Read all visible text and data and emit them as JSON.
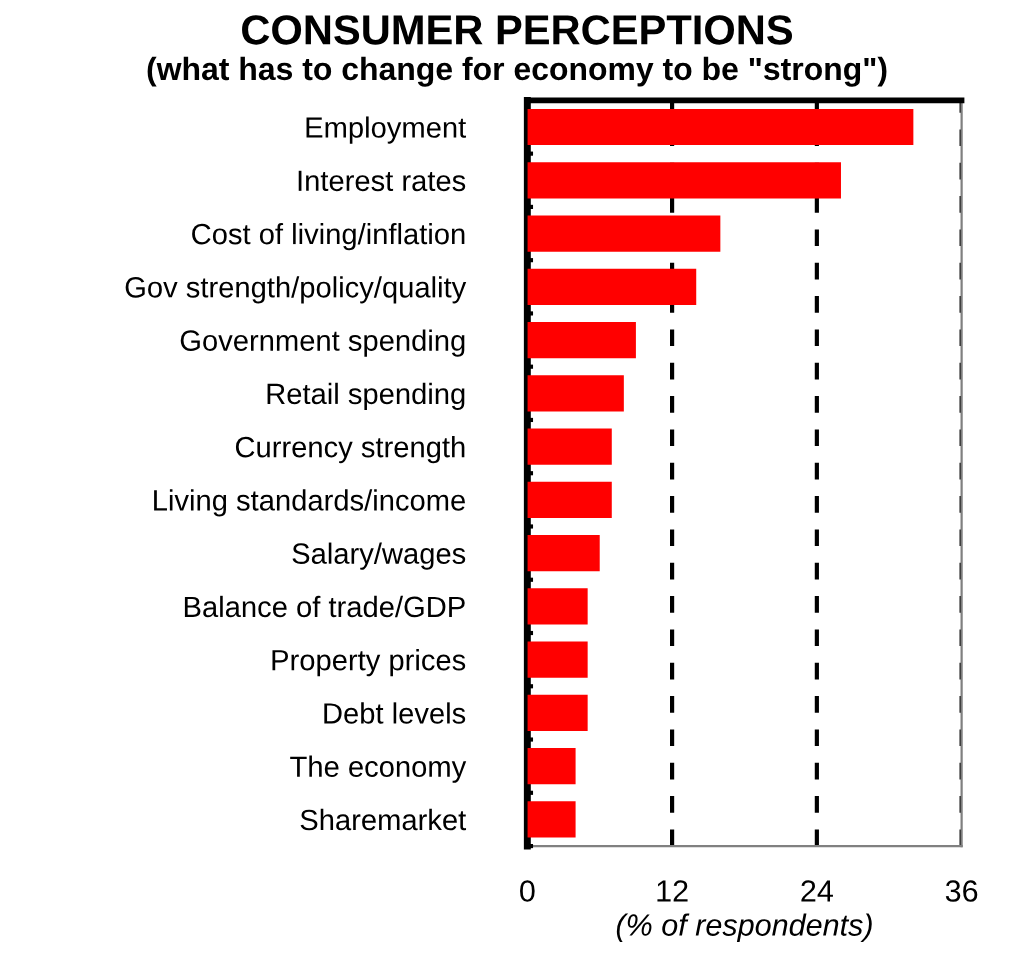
{
  "chart_data": {
    "type": "bar",
    "orientation": "horizontal",
    "title": "CONSUMER PERCEPTIONS",
    "subtitle": "(what has to change for economy to be \"strong\")",
    "xlabel": "(% of respondents)",
    "categories": [
      "Employment",
      "Interest rates",
      "Cost of living/inflation",
      "Gov strength/policy/quality",
      "Government spending",
      "Retail spending",
      "Currency strength",
      "Living standards/income",
      "Salary/wages",
      "Balance of trade/GDP",
      "Property prices",
      "Debt levels",
      "The economy",
      "Sharemarket"
    ],
    "values": [
      32,
      26,
      16,
      14,
      9,
      8,
      7,
      7,
      6,
      5,
      5,
      5,
      4,
      4
    ],
    "color": "#ff0000",
    "xlim": [
      0,
      36
    ],
    "xticks": [
      0,
      12,
      24,
      36
    ],
    "grid": "x",
    "line_style": "dashed",
    "legend": false
  }
}
